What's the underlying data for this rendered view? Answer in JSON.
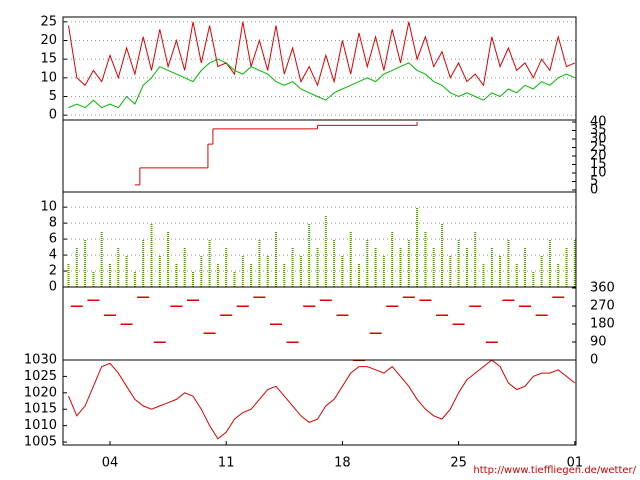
{
  "chart_data": [
    {
      "type": "line",
      "xlim": [
        1.17,
        32.07
      ],
      "ylim": [
        -1.3,
        26.3
      ],
      "yticks": [
        0,
        5,
        10,
        15,
        20,
        25
      ],
      "grid": true,
      "axis_side": "left",
      "x": [
        1.5,
        2,
        2.5,
        3,
        3.5,
        4,
        4.5,
        5,
        5.5,
        6,
        6.5,
        7,
        7.5,
        8,
        8.5,
        9,
        9.5,
        10,
        10.5,
        11,
        11.5,
        12,
        12.5,
        13,
        13.5,
        14,
        14.5,
        15,
        15.5,
        16,
        16.5,
        17,
        17.5,
        18,
        18.5,
        19,
        19.5,
        20,
        20.5,
        21,
        21.5,
        22,
        22.5,
        23,
        23.5,
        24,
        24.5,
        25,
        25.5,
        26,
        26.5,
        27,
        27.5,
        28,
        28.5,
        29,
        29.5,
        30,
        30.5,
        31,
        31.5,
        32
      ],
      "series": [
        {
          "color": "#dd0000",
          "values": [
            24,
            10,
            8,
            12,
            9,
            16,
            10,
            18,
            11,
            21,
            12,
            23,
            13,
            20,
            12,
            25,
            14,
            24,
            13,
            14,
            11,
            25,
            13,
            20,
            12,
            24,
            11,
            18,
            9,
            13,
            8,
            16,
            9,
            20,
            11,
            22,
            13,
            21,
            12,
            23,
            14,
            25,
            15,
            21,
            13,
            17,
            10,
            14,
            9,
            11,
            8,
            21,
            13,
            18,
            12,
            14,
            10,
            15,
            12,
            21,
            13,
            14
          ]
        },
        {
          "color": "#00bb00",
          "values": [
            2,
            3,
            2,
            4,
            2,
            3,
            2,
            5,
            3,
            8,
            10,
            13,
            12,
            11,
            10,
            9,
            12,
            14,
            15,
            14,
            12,
            11,
            13,
            12,
            11,
            9,
            8,
            9,
            7,
            6,
            5,
            4,
            6,
            7,
            8,
            9,
            10,
            9,
            11,
            12,
            13,
            14,
            12,
            11,
            9,
            8,
            6,
            5,
            6,
            5,
            4,
            6,
            5,
            7,
            6,
            8,
            7,
            9,
            8,
            10,
            11,
            10
          ]
        }
      ]
    },
    {
      "type": "step",
      "xlim": [
        1.17,
        32.07
      ],
      "ylim": [
        -1.2,
        41.2
      ],
      "yticks": [
        0,
        5,
        10,
        15,
        20,
        25,
        30,
        35,
        40
      ],
      "grid": false,
      "axis_side": "right",
      "x": [
        5.5,
        5.8,
        9.8,
        9.9,
        10.2,
        16.5,
        22.5
      ],
      "series": [
        {
          "color": "#dd0000",
          "values": [
            3,
            13,
            13,
            27,
            36,
            38,
            40
          ]
        }
      ]
    },
    {
      "type": "bar",
      "xlim": [
        1.17,
        32.07
      ],
      "ylim": [
        0,
        11.9
      ],
      "yticks": [
        0,
        2,
        4,
        6,
        8,
        10
      ],
      "grid": true,
      "axis_side": "left",
      "x": [
        1.5,
        2,
        2.5,
        3,
        3.5,
        4,
        4.5,
        5,
        5.5,
        6,
        6.5,
        7,
        7.5,
        8,
        8.5,
        9,
        9.5,
        10,
        10.5,
        11,
        11.5,
        12,
        12.5,
        13,
        13.5,
        14,
        14.5,
        15,
        15.5,
        16,
        16.5,
        17,
        17.5,
        18,
        18.5,
        19,
        19.5,
        20,
        20.5,
        21,
        21.5,
        22,
        22.5,
        23,
        23.5,
        24,
        24.5,
        25,
        25.5,
        26,
        26.5,
        27,
        27.5,
        28,
        28.5,
        29,
        29.5,
        30,
        30.5,
        31,
        31.5,
        32
      ],
      "series": [
        {
          "color": "#449900",
          "values": [
            3,
            5,
            6,
            2,
            7,
            3,
            5,
            4,
            2,
            6,
            8,
            4,
            7,
            3,
            5,
            2,
            4,
            6,
            3,
            5,
            2,
            4,
            3,
            6,
            4,
            7,
            3,
            5,
            4,
            8,
            5,
            9,
            6,
            4,
            7,
            3,
            6,
            5,
            4,
            7,
            5,
            6,
            10,
            7,
            5,
            8,
            4,
            6,
            5,
            7,
            3,
            5,
            4,
            6,
            3,
            5,
            2,
            4,
            6,
            3,
            5,
            6
          ]
        }
      ]
    },
    {
      "type": "scatter",
      "xlim": [
        1.17,
        32.07
      ],
      "ylim": [
        0,
        365
      ],
      "yticks": [
        0,
        90,
        180,
        270,
        360
      ],
      "grid": false,
      "axis_side": "right",
      "x": [
        2,
        3,
        4,
        5,
        6,
        7,
        8,
        9,
        10,
        11,
        12,
        13,
        14,
        15,
        16,
        17,
        18,
        19,
        20,
        21,
        22,
        23,
        24,
        25,
        26,
        27,
        28,
        29,
        30,
        31
      ],
      "series": [
        {
          "color": "#dd0000",
          "values": [
            270,
            300,
            225,
            180,
            315,
            90,
            270,
            300,
            135,
            225,
            270,
            315,
            180,
            90,
            270,
            300,
            225,
            0,
            135,
            270,
            315,
            300,
            225,
            180,
            270,
            90,
            300,
            270,
            225,
            315
          ]
        }
      ]
    },
    {
      "type": "line",
      "xlim": [
        1.17,
        32.07
      ],
      "ylim": [
        1004.1,
        1030
      ],
      "yticks": [
        1005,
        1010,
        1015,
        1020,
        1025,
        1030
      ],
      "grid": false,
      "axis_side": "left",
      "xticks": [
        {
          "value": 4,
          "label": "04"
        },
        11,
        18,
        25,
        {
          "value": 32,
          "label": "01"
        }
      ],
      "x": [
        1.5,
        2,
        2.5,
        3,
        3.5,
        4,
        4.5,
        5,
        5.5,
        6,
        6.5,
        7,
        7.5,
        8,
        8.5,
        9,
        9.5,
        10,
        10.5,
        11,
        11.5,
        12,
        12.5,
        13,
        13.5,
        14,
        14.5,
        15,
        15.5,
        16,
        16.5,
        17,
        17.5,
        18,
        18.5,
        19,
        19.5,
        20,
        20.5,
        21,
        21.5,
        22,
        22.5,
        23,
        23.5,
        24,
        24.5,
        25,
        25.5,
        26,
        26.5,
        27,
        27.5,
        28,
        28.5,
        29,
        29.5,
        30,
        30.5,
        31,
        31.5,
        32
      ],
      "series": [
        {
          "color": "#dd0000",
          "values": [
            1019,
            1013,
            1016,
            1022,
            1028,
            1029,
            1026,
            1022,
            1018,
            1016,
            1015,
            1016,
            1017,
            1018,
            1020,
            1019,
            1015,
            1010,
            1006,
            1008,
            1012,
            1014,
            1015,
            1018,
            1021,
            1022,
            1019,
            1016,
            1013,
            1011,
            1012,
            1016,
            1018,
            1022,
            1026,
            1028,
            1028,
            1027,
            1026,
            1028,
            1025,
            1022,
            1018,
            1015,
            1013,
            1012,
            1015,
            1020,
            1024,
            1026,
            1028,
            1030,
            1028,
            1023,
            1021,
            1022,
            1025,
            1026,
            1026,
            1027,
            1025,
            1023
          ]
        }
      ]
    }
  ],
  "footer": "http://www.tieffliegen.de/wetter/"
}
